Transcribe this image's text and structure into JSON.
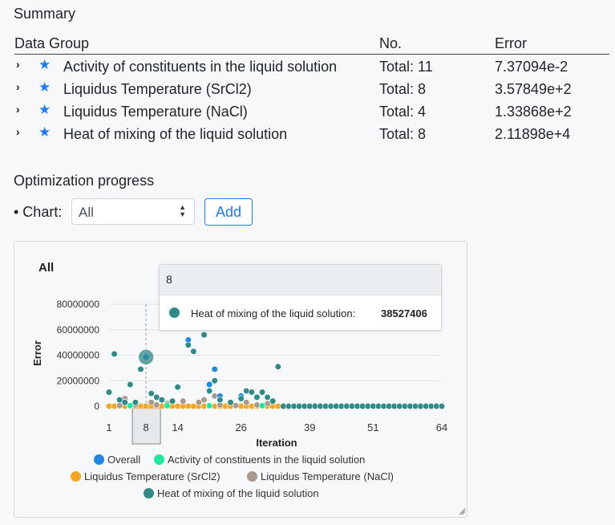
{
  "summary": {
    "title": "Summary",
    "columns": [
      "Data Group",
      "No.",
      "Error"
    ],
    "rows": [
      {
        "name": "Activity of constituents in the liquid solution",
        "no": "Total: 11",
        "error": "7.37094e-2"
      },
      {
        "name": "Liquidus Temperature (SrCl2)",
        "no": "Total: 8",
        "error": "3.57849e+2"
      },
      {
        "name": "Liquidus Temperature (NaCl)",
        "no": "Total: 4",
        "error": "1.33868e+2"
      },
      {
        "name": "Heat of mixing of the liquid solution",
        "no": "Total: 8",
        "error": "2.11898e+4"
      }
    ]
  },
  "optimization": {
    "title": "Optimization progress",
    "chart_label": "• Chart:",
    "select_value": "All",
    "add_label": "Add"
  },
  "tooltip": {
    "header": "8",
    "series": "Heat of mixing of the liquid solution:",
    "value": "38527406"
  },
  "colors": {
    "overall": "#1e88e5",
    "activity": "#1de9a0",
    "sr": "#f5a623",
    "nacl": "#a89a8e",
    "heat": "#2e8b88",
    "accent": "#1e7bf0"
  },
  "chart_data": {
    "type": "scatter",
    "title": "All",
    "xlabel": "Iteration",
    "ylabel": "Error",
    "x_ticks": [
      "1",
      "8",
      "14",
      "26",
      "39",
      "51",
      "64"
    ],
    "y_ticks": [
      "0",
      "20000000",
      "40000000",
      "60000000",
      "80000000"
    ],
    "xlim": [
      1,
      64
    ],
    "ylim": [
      0,
      80000000
    ],
    "highlight_x": 8,
    "legend": [
      {
        "name": "Overall",
        "color": "#1e88e5"
      },
      {
        "name": "Activity of constituents in the liquid solution",
        "color": "#1de9a0"
      },
      {
        "name": "Liquidus Temperature (SrCl2)",
        "color": "#f5a623"
      },
      {
        "name": "Liquidus Temperature (NaCl)",
        "color": "#a89a8e"
      },
      {
        "name": "Heat of mixing of the liquid solution",
        "color": "#2e8b88"
      }
    ],
    "series": [
      {
        "name": "Overall",
        "color": "#1e88e5",
        "points": [
          [
            1,
            11000000
          ],
          [
            2,
            41000000
          ],
          [
            3,
            5000000
          ],
          [
            4,
            3000000
          ],
          [
            5,
            17000000
          ],
          [
            6,
            3000000
          ],
          [
            7,
            29000000
          ],
          [
            8,
            38500000
          ],
          [
            9,
            10000000
          ],
          [
            10,
            7000000
          ],
          [
            11,
            5000000
          ],
          [
            13,
            4000000
          ],
          [
            14,
            15000000
          ],
          [
            16,
            52000000
          ],
          [
            17,
            43000000
          ],
          [
            19,
            56000000
          ],
          [
            20,
            17000000
          ],
          [
            21,
            29000000
          ],
          [
            22,
            8000000
          ],
          [
            24,
            3000000
          ],
          [
            26,
            8000000
          ],
          [
            27,
            12000000
          ],
          [
            28,
            11000000
          ],
          [
            29,
            7000000
          ],
          [
            30,
            11000000
          ],
          [
            31,
            7000000
          ],
          [
            32,
            4000000
          ],
          [
            33,
            31000000
          ]
        ]
      },
      {
        "name": "Activity of constituents in the liquid solution",
        "color": "#1de9a0",
        "points": [
          [
            5,
            400000
          ],
          [
            12,
            400000
          ],
          [
            20,
            400000
          ],
          [
            30,
            400000
          ]
        ]
      },
      {
        "name": "Liquidus Temperature (SrCl2)",
        "color": "#f5a623",
        "points": [
          [
            1,
            0
          ],
          [
            2,
            0
          ],
          [
            3,
            0
          ],
          [
            4,
            0
          ],
          [
            5,
            0
          ],
          [
            6,
            0
          ],
          [
            7,
            0
          ],
          [
            8,
            0
          ],
          [
            9,
            0
          ],
          [
            10,
            0
          ],
          [
            11,
            0
          ],
          [
            12,
            0
          ],
          [
            13,
            0
          ],
          [
            14,
            0
          ],
          [
            15,
            0
          ],
          [
            16,
            0
          ],
          [
            17,
            0
          ],
          [
            18,
            0
          ],
          [
            19,
            0
          ],
          [
            20,
            0
          ],
          [
            21,
            0
          ],
          [
            22,
            0
          ],
          [
            23,
            0
          ],
          [
            24,
            0
          ],
          [
            25,
            0
          ],
          [
            26,
            0
          ],
          [
            27,
            0
          ],
          [
            28,
            0
          ],
          [
            29,
            0
          ],
          [
            30,
            0
          ],
          [
            31,
            0
          ],
          [
            32,
            0
          ],
          [
            33,
            0
          ]
        ]
      },
      {
        "name": "Liquidus Temperature (NaCl)",
        "color": "#a89a8e",
        "points": [
          [
            3,
            500000
          ],
          [
            4,
            6000000
          ],
          [
            6,
            1000000
          ],
          [
            9,
            3000000
          ],
          [
            10,
            1000000
          ],
          [
            12,
            2000000
          ],
          [
            15,
            4000000
          ],
          [
            18,
            3000000
          ],
          [
            19,
            5000000
          ],
          [
            21,
            8000000
          ],
          [
            22,
            1000000
          ],
          [
            25,
            500000
          ],
          [
            27,
            3000000
          ],
          [
            29,
            1000000
          ],
          [
            31,
            2000000
          ]
        ]
      },
      {
        "name": "Heat of mixing of the liquid solution",
        "color": "#2e8b88",
        "points": [
          [
            1,
            11000000
          ],
          [
            2,
            41000000
          ],
          [
            3,
            5000000
          ],
          [
            4,
            3000000
          ],
          [
            5,
            17000000
          ],
          [
            6,
            3000000
          ],
          [
            7,
            29000000
          ],
          [
            8,
            38527406
          ],
          [
            9,
            10000000
          ],
          [
            10,
            7000000
          ],
          [
            11,
            5000000
          ],
          [
            13,
            4000000
          ],
          [
            14,
            15000000
          ],
          [
            16,
            48000000
          ],
          [
            17,
            43000000
          ],
          [
            19,
            56000000
          ],
          [
            20,
            12000000
          ],
          [
            21,
            20000000
          ],
          [
            22,
            5000000
          ],
          [
            24,
            3000000
          ],
          [
            26,
            6000000
          ],
          [
            27,
            12000000
          ],
          [
            28,
            11000000
          ],
          [
            29,
            7000000
          ],
          [
            30,
            11000000
          ],
          [
            31,
            7000000
          ],
          [
            32,
            4000000
          ],
          [
            33,
            31000000
          ],
          [
            34,
            0
          ],
          [
            35,
            0
          ],
          [
            36,
            0
          ],
          [
            37,
            0
          ],
          [
            38,
            0
          ],
          [
            39,
            0
          ],
          [
            40,
            0
          ],
          [
            41,
            0
          ],
          [
            42,
            0
          ],
          [
            43,
            0
          ],
          [
            44,
            0
          ],
          [
            45,
            0
          ],
          [
            46,
            0
          ],
          [
            47,
            0
          ],
          [
            48,
            0
          ],
          [
            49,
            0
          ],
          [
            50,
            0
          ],
          [
            51,
            0
          ],
          [
            52,
            0
          ],
          [
            53,
            0
          ],
          [
            54,
            0
          ],
          [
            55,
            0
          ],
          [
            56,
            0
          ],
          [
            57,
            0
          ],
          [
            58,
            0
          ],
          [
            59,
            0
          ],
          [
            60,
            0
          ],
          [
            61,
            0
          ],
          [
            62,
            0
          ],
          [
            63,
            0
          ],
          [
            64,
            0
          ]
        ]
      }
    ]
  }
}
